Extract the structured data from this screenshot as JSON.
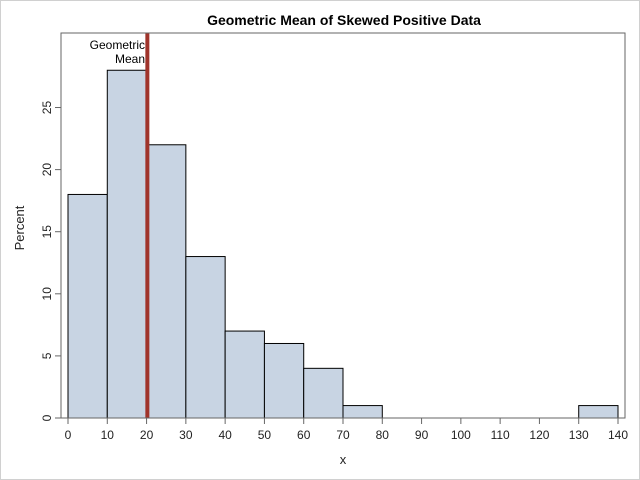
{
  "chart_data": {
    "type": "histogram",
    "title": "Geometric Mean of Skewed Positive Data",
    "xlabel": "x",
    "ylabel": "Percent",
    "xlim": [
      0,
      140
    ],
    "ylim": [
      0,
      31
    ],
    "xticks": [
      0,
      10,
      20,
      30,
      40,
      50,
      60,
      70,
      80,
      90,
      100,
      110,
      120,
      130,
      140
    ],
    "yticks": [
      0,
      5,
      10,
      15,
      20,
      25
    ],
    "bins": [
      {
        "x0": 0,
        "x1": 10,
        "value": 18
      },
      {
        "x0": 10,
        "x1": 20,
        "value": 28
      },
      {
        "x0": 20,
        "x1": 30,
        "value": 22
      },
      {
        "x0": 30,
        "x1": 40,
        "value": 13
      },
      {
        "x0": 40,
        "x1": 50,
        "value": 7
      },
      {
        "x0": 50,
        "x1": 60,
        "value": 6
      },
      {
        "x0": 60,
        "x1": 70,
        "value": 4
      },
      {
        "x0": 70,
        "x1": 80,
        "value": 1
      },
      {
        "x0": 80,
        "x1": 90,
        "value": 0
      },
      {
        "x0": 90,
        "x1": 100,
        "value": 0
      },
      {
        "x0": 100,
        "x1": 110,
        "value": 0
      },
      {
        "x0": 110,
        "x1": 120,
        "value": 0
      },
      {
        "x0": 120,
        "x1": 130,
        "value": 0
      },
      {
        "x0": 130,
        "x1": 140,
        "value": 1
      }
    ],
    "reference_line": {
      "x": 20.2,
      "label_lines": [
        "Geometric",
        "Mean"
      ]
    },
    "colors": {
      "bar_fill": "#c8d4e3",
      "bar_stroke": "#000000",
      "reference_line": "#a0342b"
    }
  }
}
